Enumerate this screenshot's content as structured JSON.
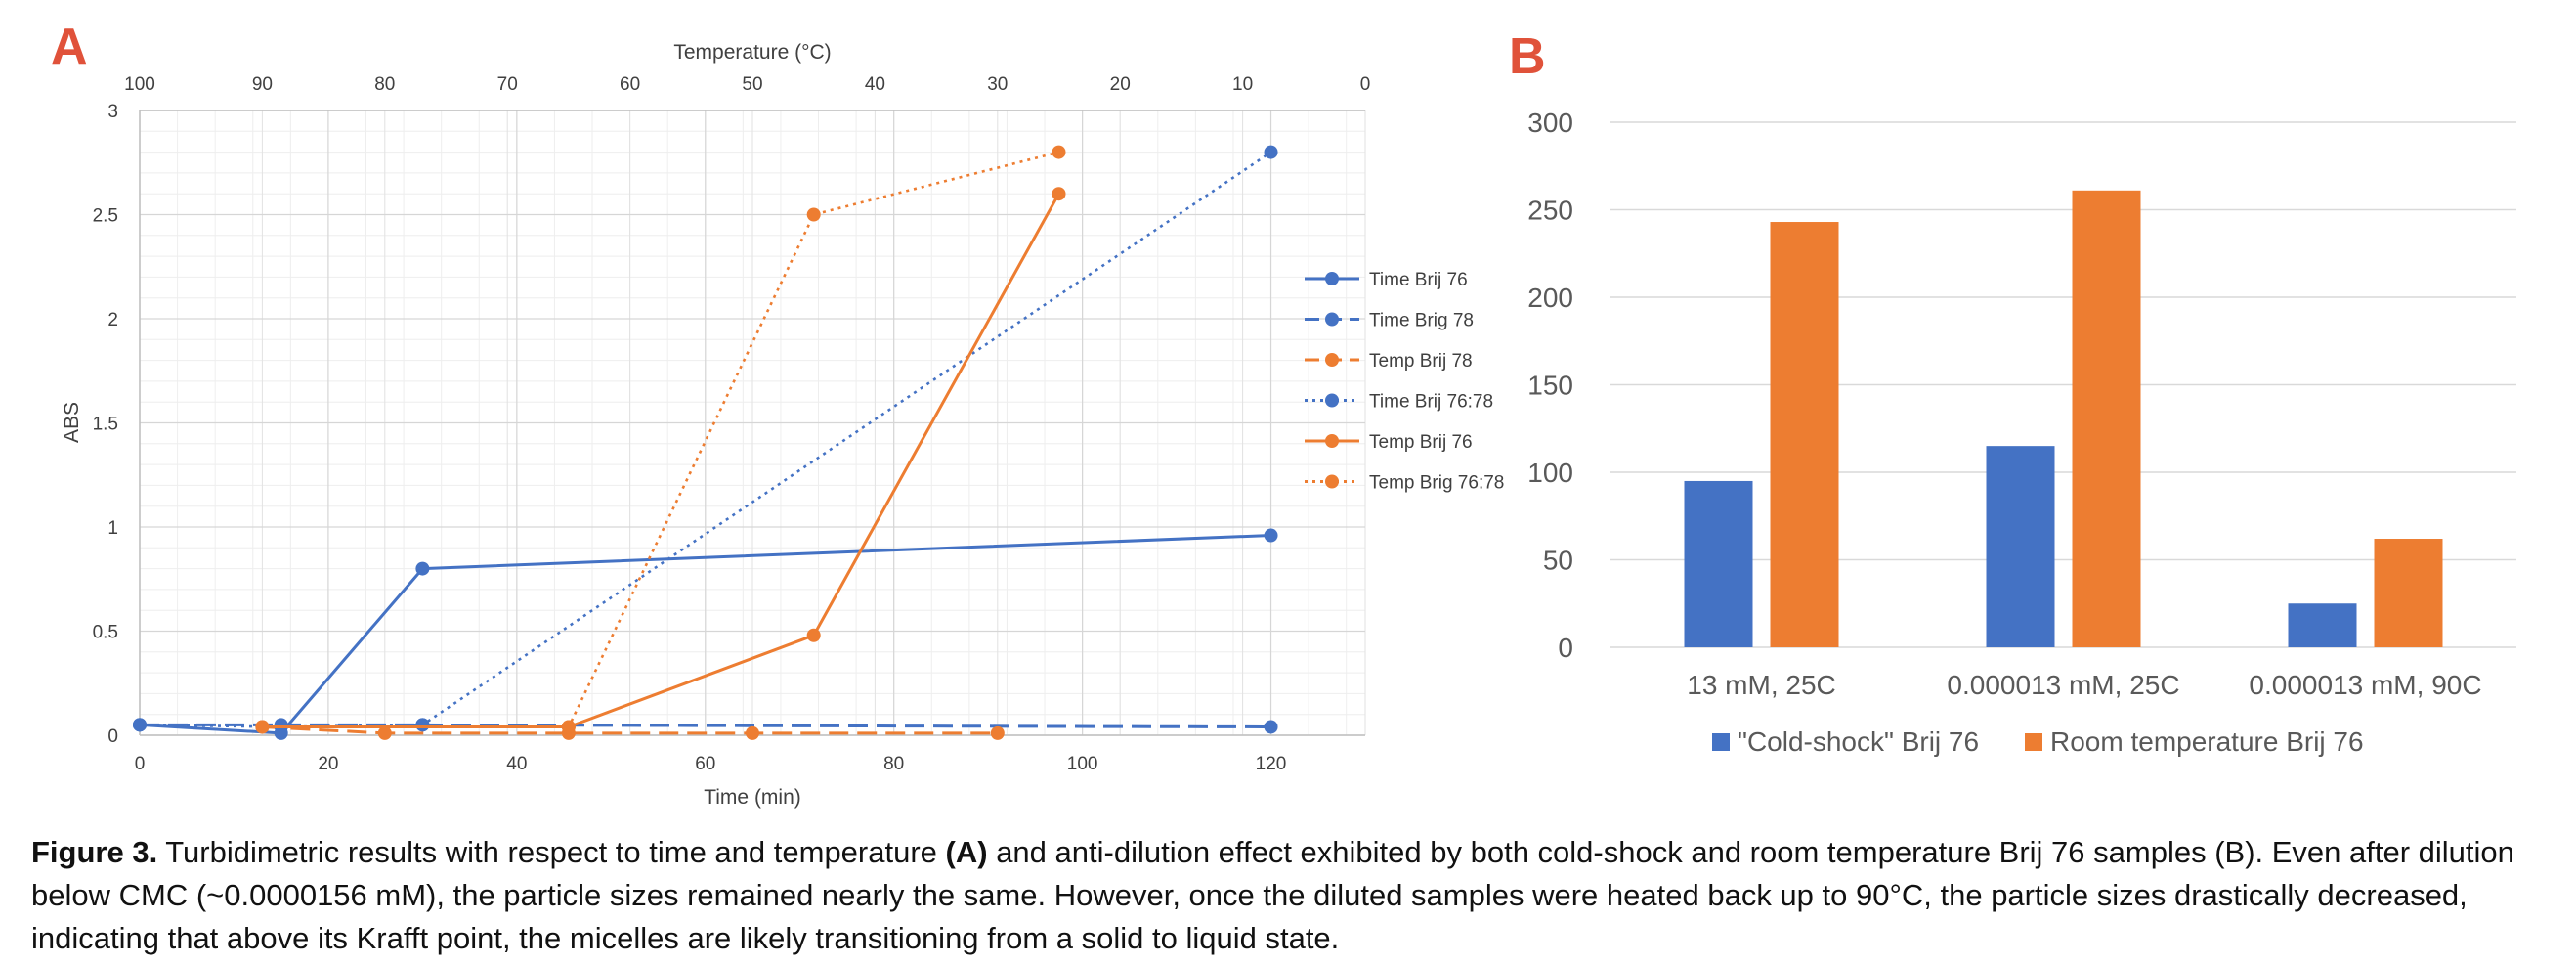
{
  "panel_a": {
    "letter": "A",
    "legend_title": "",
    "chart_data": {
      "type": "line",
      "title": "",
      "xlabel": "Time (min)",
      "x2label": "Temperature (°C)",
      "ylabel": "ABS",
      "xlim": [
        0,
        130
      ],
      "x2lim": [
        100,
        0
      ],
      "ylim": [
        0,
        3
      ],
      "x_ticks": [
        "0",
        "20",
        "40",
        "60",
        "80",
        "100",
        "120"
      ],
      "x2_ticks": [
        "100",
        "90",
        "80",
        "70",
        "60",
        "50",
        "40",
        "30",
        "20",
        "10",
        "0"
      ],
      "y_ticks": [
        "0",
        "0.5",
        "1",
        "1.5",
        "2",
        "2.5",
        "3"
      ],
      "grid": true,
      "legend_position": "right",
      "series": [
        {
          "name": "Time Brij 76",
          "axis": "time",
          "style": "solid",
          "color": "#4472c4",
          "points": [
            [
              0,
              0.05
            ],
            [
              15,
              0.01
            ],
            [
              30,
              0.8
            ],
            [
              120,
              0.96
            ]
          ]
        },
        {
          "name": "Time Brig 78",
          "axis": "time",
          "style": "dashed",
          "color": "#4472c4",
          "points": [
            [
              0,
              0.05
            ],
            [
              15,
              0.05
            ],
            [
              30,
              0.05
            ],
            [
              120,
              0.04
            ]
          ]
        },
        {
          "name": "Temp Brij 78",
          "axis": "temp",
          "style": "dashed",
          "color": "#ed7d31",
          "points": [
            [
              90,
              0.04
            ],
            [
              80,
              0.01
            ],
            [
              65,
              0.01
            ],
            [
              50,
              0.01
            ],
            [
              30,
              0.01
            ]
          ]
        },
        {
          "name": "Time Brij 76:78",
          "axis": "time",
          "style": "dotted",
          "color": "#4472c4",
          "points": [
            [
              0,
              0.05
            ],
            [
              15,
              0.04
            ],
            [
              30,
              0.05
            ],
            [
              120,
              2.8
            ]
          ]
        },
        {
          "name": "Temp Brij 76",
          "axis": "temp",
          "style": "solid",
          "color": "#ed7d31",
          "points": [
            [
              90,
              0.04
            ],
            [
              65,
              0.04
            ],
            [
              45,
              0.48
            ],
            [
              25,
              2.6
            ]
          ]
        },
        {
          "name": "Temp Brig 76:78",
          "axis": "temp",
          "style": "dotted",
          "color": "#ed7d31",
          "points": [
            [
              90,
              0.04
            ],
            [
              65,
              0.04
            ],
            [
              45,
              2.5
            ],
            [
              25,
              2.8
            ]
          ]
        }
      ]
    }
  },
  "panel_b": {
    "letter": "B",
    "chart_data": {
      "type": "bar",
      "title": "",
      "xlabel": "",
      "ylabel": "",
      "ylim": [
        0,
        300
      ],
      "y_ticks": [
        "0",
        "50",
        "100",
        "150",
        "200",
        "250",
        "300"
      ],
      "grid": true,
      "legend_position": "bottom",
      "categories": [
        "13 mM, 25C",
        "0.000013 mM, 25C",
        "0.000013 mM, 90C"
      ],
      "series": [
        {
          "name": "\"Cold-shock\" Brij 76",
          "color": "#4472c4",
          "values": [
            95,
            115,
            25
          ]
        },
        {
          "name": "Room temperature Brij 76",
          "color": "#ed7d31",
          "values": [
            243,
            261,
            62
          ]
        }
      ]
    }
  },
  "caption": {
    "fig_label": "Figure 3.",
    "part1": " Turbidimetric results with respect to time and temperature ",
    "bold_a": "(A)",
    "part2": " and anti-dilution effect exhibited by both cold-shock and room temperature Brij 76 samples (B). Even after dilution below CMC (~0.0000156 mM), the particle sizes remained nearly the same. However, once the diluted samples were heated back up to 90°C, the particle sizes drastically decreased, indicating that above its Krafft point, the micelles are likely transitioning from a solid to liquid state."
  }
}
